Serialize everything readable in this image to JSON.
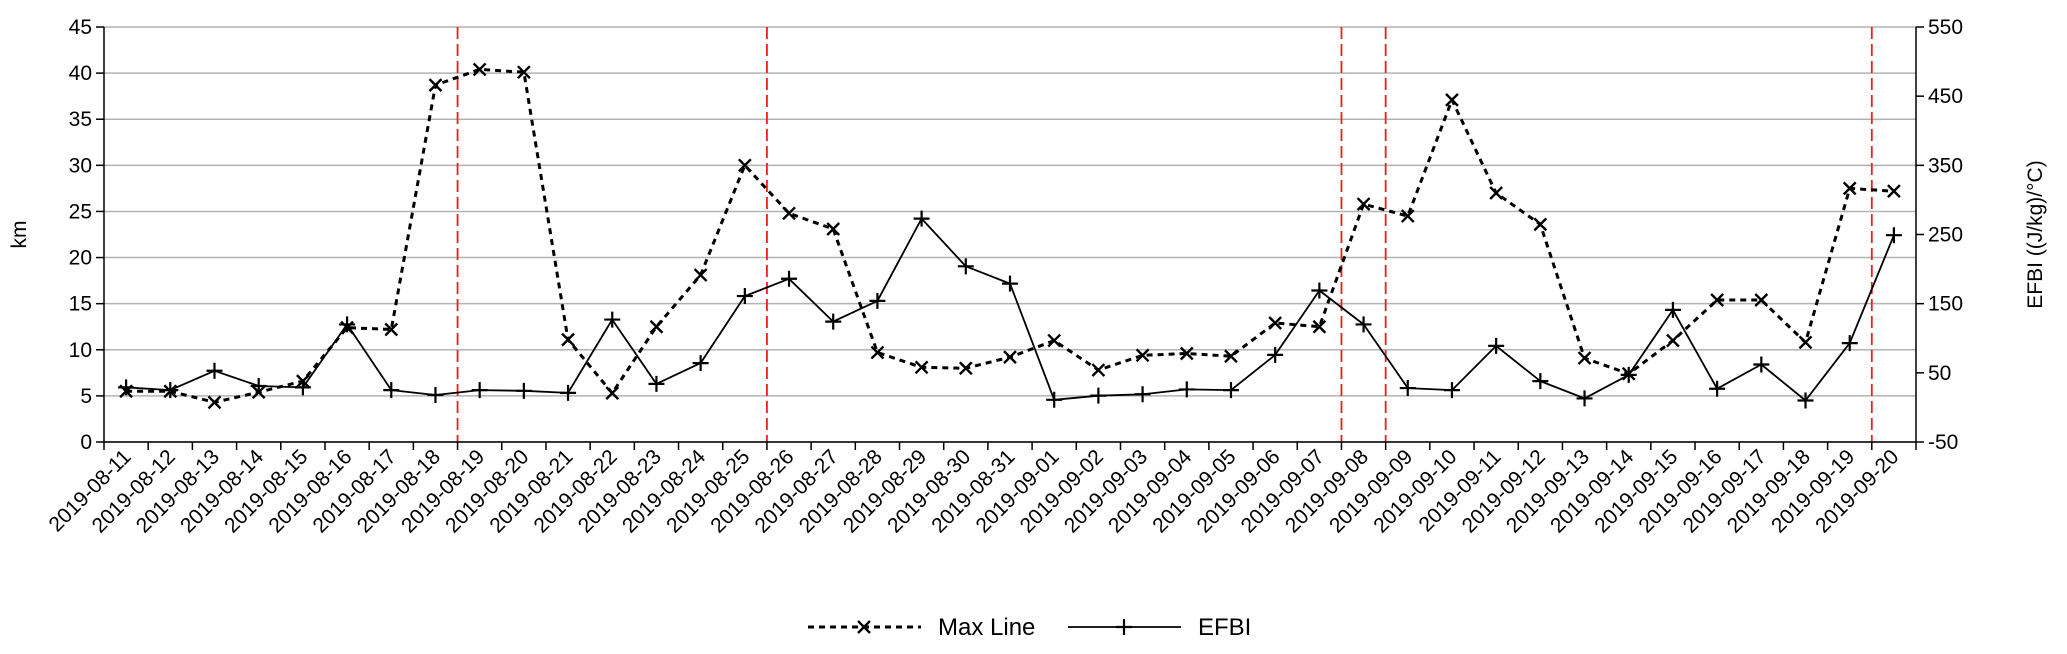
{
  "chart_data": {
    "type": "line",
    "x": [
      "2019-08-11",
      "2019-08-12",
      "2019-08-13",
      "2019-08-14",
      "2019-08-15",
      "2019-08-16",
      "2019-08-17",
      "2019-08-18",
      "2019-08-19",
      "2019-08-20",
      "2019-08-21",
      "2019-08-22",
      "2019-08-23",
      "2019-08-24",
      "2019-08-25",
      "2019-08-26",
      "2019-08-27",
      "2019-08-28",
      "2019-08-29",
      "2019-08-30",
      "2019-08-31",
      "2019-09-01",
      "2019-09-02",
      "2019-09-03",
      "2019-09-04",
      "2019-09-05",
      "2019-09-06",
      "2019-09-07",
      "2019-09-08",
      "2019-09-09",
      "2019-09-10",
      "2019-09-11",
      "2019-09-12",
      "2019-09-13",
      "2019-09-14",
      "2019-09-15",
      "2019-09-16",
      "2019-09-17",
      "2019-09-18",
      "2019-09-19",
      "2019-09-20"
    ],
    "series": [
      {
        "name": "Max Line",
        "axis": "left",
        "line_style": "dashed",
        "marker": "x",
        "values": [
          5.5,
          5.5,
          4.3,
          5.4,
          6.6,
          12.4,
          12.2,
          38.7,
          40.4,
          40.1,
          11.1,
          5.3,
          12.5,
          18.1,
          30.0,
          24.8,
          23.1,
          9.7,
          8.1,
          8.0,
          9.2,
          11.0,
          7.8,
          9.4,
          9.6,
          9.3,
          12.9,
          12.5,
          25.8,
          24.5,
          37.1,
          27.0,
          23.6,
          9.1,
          7.4,
          11.0,
          15.4,
          15.4,
          10.8,
          27.5,
          27.2
        ]
      },
      {
        "name": "EFBI",
        "axis": "right",
        "line_style": "solid",
        "marker": "+",
        "values": [
          29,
          25,
          53,
          31,
          29,
          120,
          25,
          18,
          25,
          24,
          21,
          127,
          34,
          64,
          161,
          186,
          124,
          154,
          273,
          204,
          179,
          11,
          17,
          19,
          26,
          25,
          76,
          169,
          120,
          28,
          25,
          89,
          38,
          13,
          47,
          141,
          27,
          62,
          10,
          93,
          249
        ]
      }
    ],
    "vertical_markers": [
      "2019-08-18",
      "2019-08-25",
      "2019-09-07",
      "2019-09-08",
      "2019-09-19"
    ],
    "vertical_marker_color": "#e8221a",
    "xlabel": "",
    "ylabel": "km",
    "ylabel_right": "EFBI ((J/kg)/°C)",
    "ylim": [
      0,
      45
    ],
    "yticks": [
      0,
      5,
      10,
      15,
      20,
      25,
      30,
      35,
      40,
      45
    ],
    "ylim_right": [
      -50,
      550
    ],
    "yticks_right": [
      -50,
      50,
      150,
      250,
      350,
      450,
      550
    ],
    "grid": "horizontal",
    "legend_position": "bottom-center",
    "title": ""
  }
}
